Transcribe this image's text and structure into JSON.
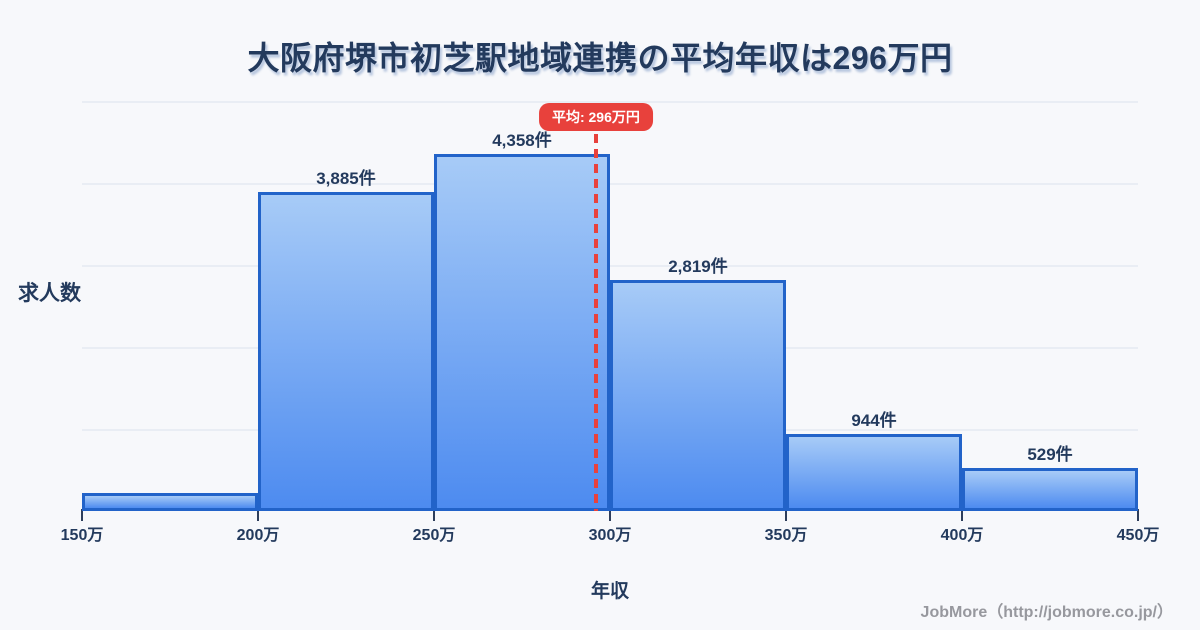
{
  "title": "大阪府堺市初芝駅地域連携の平均年収は296万円",
  "chart_data": {
    "type": "bar",
    "subtype": "histogram",
    "title": "大阪府堺市初芝駅地域連携の平均年収は296万円",
    "xlabel": "年収",
    "ylabel": "求人数",
    "x_tick_labels": [
      "150万",
      "200万",
      "250万",
      "300万",
      "350万",
      "400万",
      "450万"
    ],
    "bin_edges_man_yen": [
      150,
      200,
      250,
      300,
      350,
      400,
      450
    ],
    "values": [
      220,
      3885,
      4358,
      2819,
      944,
      529
    ],
    "bar_labels": [
      "",
      "3,885件",
      "4,358件",
      "2,819件",
      "944件",
      "529件"
    ],
    "ylim": [
      0,
      5000
    ],
    "gridline_step": 1000,
    "grid": "horizontal-only",
    "legend": "none",
    "average_line": {
      "value_man_yen": 296,
      "label": "平均: 296万円"
    }
  },
  "footer": {
    "credit": "JobMore（http://jobmore.co.jp/）"
  },
  "colors": {
    "background": "#f7f8fb",
    "text": "#233a5d",
    "bar_gradient_top": "#a7cbf7",
    "bar_gradient_bottom": "#4d8bf0",
    "bar_border": "#2263c9",
    "average_red": "#e8413c",
    "gridline": "#e9edf4",
    "tick": "#2e3e5c",
    "footer_text": "#97989e"
  }
}
